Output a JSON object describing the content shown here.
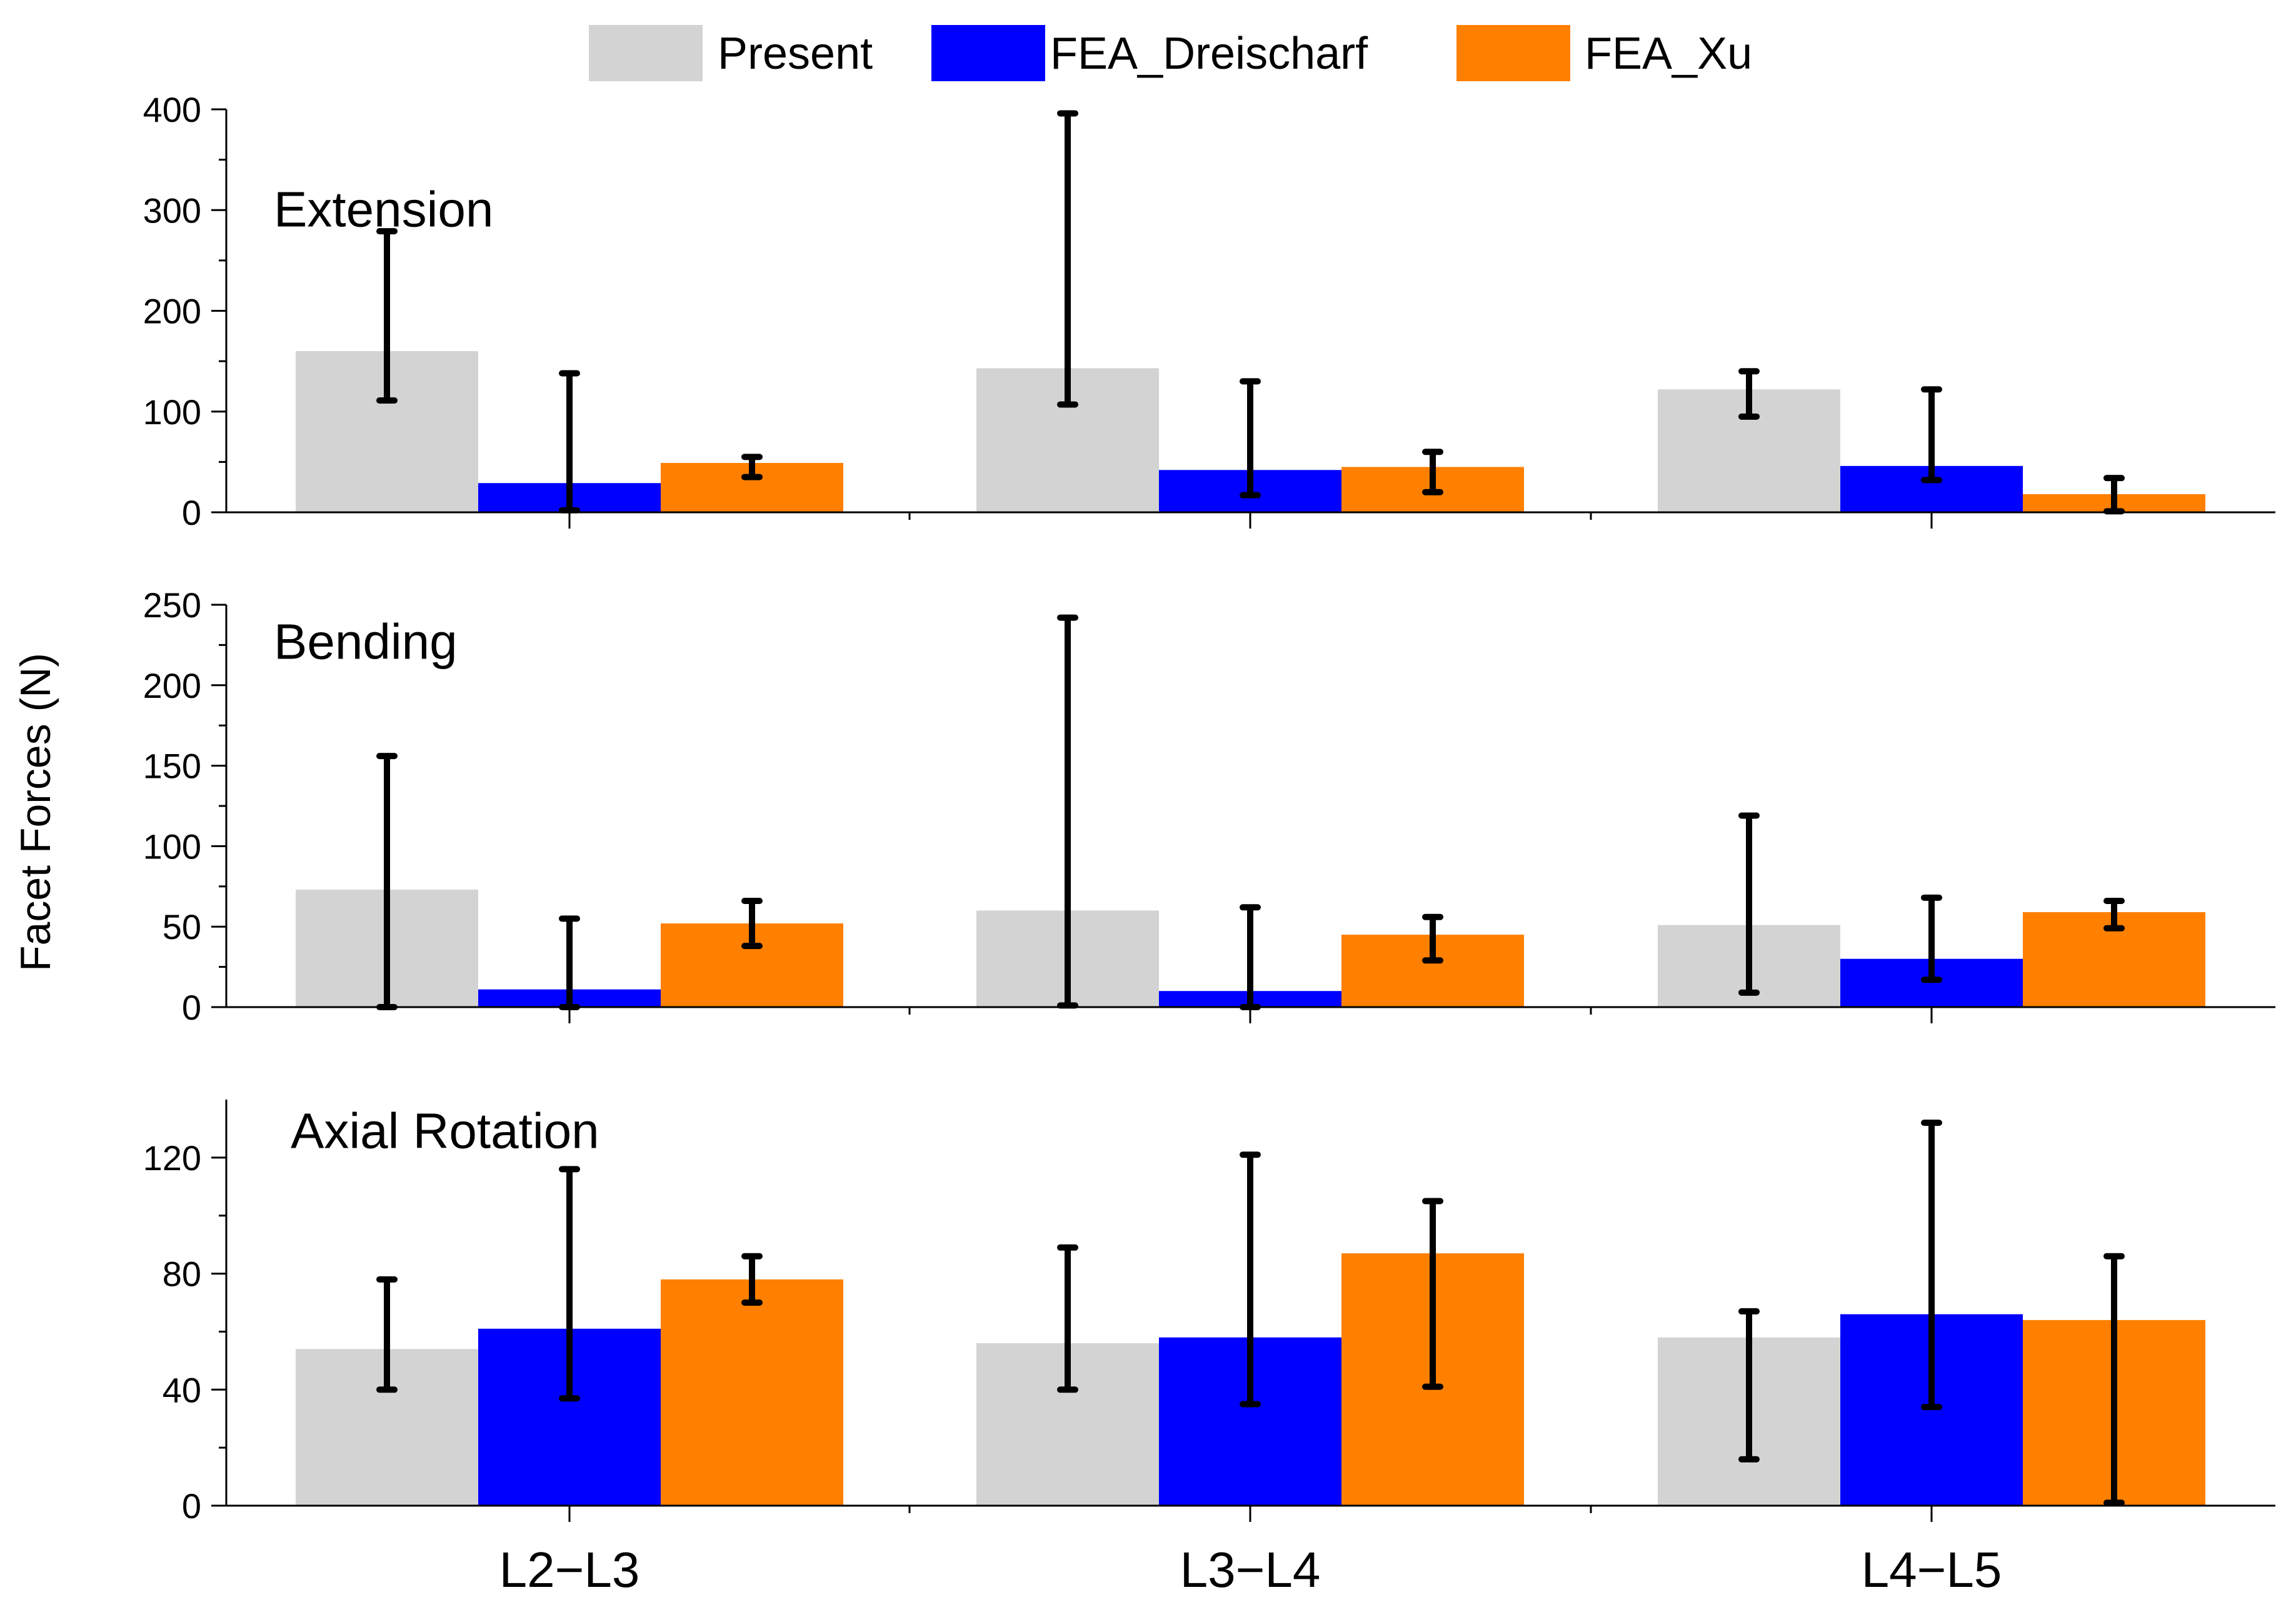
{
  "legend": [
    {
      "name": "Present",
      "color": "#d3d3d3"
    },
    {
      "name": "FEA_Dreischarf",
      "color": "#0000ff"
    },
    {
      "name": "FEA_Xu",
      "color": "#ff8000"
    }
  ],
  "ylabel": "Facet Forces (N)",
  "chart_data": {
    "type": "bar",
    "categories": [
      "L2−L3",
      "L3−L4",
      "L4−L5"
    ],
    "series_names": [
      "Present",
      "FEA_Dreischarf",
      "FEA_Xu"
    ],
    "ylabel": "Facet Forces (N)",
    "grid": false,
    "legend_position": "top-center",
    "panels": [
      {
        "title": "Extension",
        "ylim": [
          0,
          400
        ],
        "yticks": [
          0,
          100,
          200,
          300,
          400
        ],
        "series": [
          {
            "name": "Present",
            "values": [
              160,
              143,
              122
            ],
            "err_low": [
              111,
              107,
              95
            ],
            "err_high": [
              279,
              396,
              140
            ]
          },
          {
            "name": "FEA_Dreischarf",
            "values": [
              29,
              42,
              46
            ],
            "err_low": [
              2,
              17,
              32
            ],
            "err_high": [
              138,
              130,
              122
            ]
          },
          {
            "name": "FEA_Xu",
            "values": [
              49,
              45,
              18
            ],
            "err_low": [
              35,
              20,
              1
            ],
            "err_high": [
              55,
              60,
              34
            ]
          }
        ]
      },
      {
        "title": "Bending",
        "ylim": [
          0,
          250
        ],
        "yticks": [
          0,
          50,
          100,
          150,
          200,
          250
        ],
        "series": [
          {
            "name": "Present",
            "values": [
              73,
              60,
              51
            ],
            "err_low": [
              0,
              1,
              9
            ],
            "err_high": [
              156,
              242,
              119
            ]
          },
          {
            "name": "FEA_Dreischarf",
            "values": [
              11,
              10,
              30
            ],
            "err_low": [
              0,
              0,
              17
            ],
            "err_high": [
              55,
              62,
              68
            ]
          },
          {
            "name": "FEA_Xu",
            "values": [
              52,
              45,
              59
            ],
            "err_low": [
              38,
              29,
              49
            ],
            "err_high": [
              66,
              56,
              66
            ]
          }
        ]
      },
      {
        "title": "Axial Rotation",
        "ylim": [
          0,
          140
        ],
        "yticks": [
          0,
          40,
          80,
          120
        ],
        "series": [
          {
            "name": "Present",
            "values": [
              54,
              56,
              58
            ],
            "err_low": [
              40,
              40,
              16
            ],
            "err_high": [
              78,
              89,
              67
            ]
          },
          {
            "name": "FEA_Dreischarf",
            "values": [
              61,
              58,
              66
            ],
            "err_low": [
              37,
              35,
              34
            ],
            "err_high": [
              116,
              121,
              132
            ]
          },
          {
            "name": "FEA_Xu",
            "values": [
              78,
              87,
              64
            ],
            "err_low": [
              70,
              41,
              1
            ],
            "err_high": [
              86,
              105,
              86
            ]
          }
        ]
      }
    ]
  }
}
